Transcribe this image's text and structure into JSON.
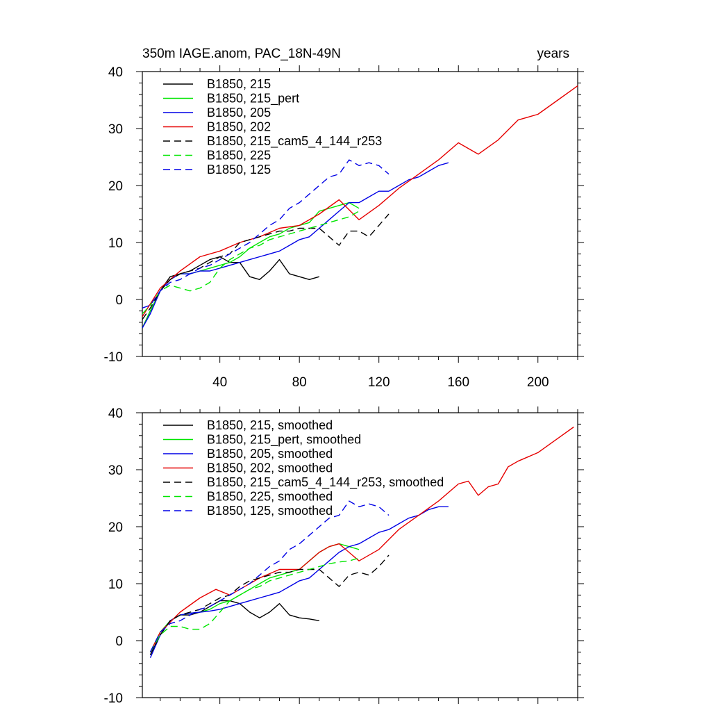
{
  "chart_data": [
    {
      "type": "line",
      "title": "350m IAGE.anom, PAC_18N-49N",
      "title_right": "years",
      "xlim": [
        1,
        220
      ],
      "ylim": [
        -10,
        40
      ],
      "xticks": [
        40,
        80,
        120,
        160,
        200
      ],
      "yticks": [
        -10,
        0,
        10,
        20,
        30,
        40
      ],
      "legend_position": "top-left",
      "series": [
        {
          "name": "B1850, 215",
          "color": "#000000",
          "dash": false,
          "x": [
            1,
            5,
            10,
            15,
            20,
            25,
            30,
            35,
            40,
            45,
            50,
            55,
            60,
            65,
            70,
            75,
            80,
            85,
            90
          ],
          "y": [
            -5,
            -2,
            1.5,
            4,
            4.5,
            5,
            6,
            7,
            7.5,
            6.5,
            6.5,
            4,
            3.5,
            5,
            7,
            4.5,
            4,
            3.5,
            4
          ]
        },
        {
          "name": "B1850, 215_pert",
          "color": "#00e600",
          "dash": false,
          "x": [
            1,
            5,
            10,
            15,
            20,
            25,
            30,
            35,
            40,
            45,
            50,
            55,
            60,
            65,
            70,
            75,
            80,
            85,
            90,
            95,
            100,
            105,
            110
          ],
          "y": [
            -5,
            -2,
            1.5,
            3.5,
            4.5,
            4.5,
            5,
            5.5,
            6,
            6.5,
            7.5,
            9,
            10,
            11,
            11.5,
            12.5,
            13,
            13.5,
            15.5,
            16,
            16.5,
            17,
            16
          ]
        },
        {
          "name": "B1850, 205",
          "color": "#0000e6",
          "dash": false,
          "x": [
            1,
            5,
            10,
            15,
            20,
            25,
            30,
            35,
            40,
            45,
            50,
            55,
            60,
            65,
            70,
            75,
            80,
            85,
            90,
            95,
            100,
            105,
            110,
            115,
            120,
            125,
            130,
            135,
            140,
            145,
            150,
            155
          ],
          "y": [
            -5,
            -2.5,
            1.5,
            3.5,
            4.5,
            4.5,
            5,
            5,
            5.5,
            6,
            6.5,
            7,
            7.5,
            8,
            8.5,
            9.5,
            10.5,
            11,
            12.5,
            14,
            15.5,
            17,
            17,
            18,
            19,
            19,
            20,
            21,
            21.5,
            22.5,
            23.5,
            24
          ]
        },
        {
          "name": "B1850, 202",
          "color": "#e60000",
          "dash": false,
          "x": [
            1,
            10,
            20,
            30,
            40,
            50,
            60,
            70,
            80,
            90,
            100,
            110,
            120,
            130,
            140,
            150,
            160,
            170,
            180,
            190,
            200,
            210,
            220
          ],
          "y": [
            -3,
            2,
            5,
            7.5,
            8.5,
            10,
            11,
            12.5,
            13,
            15,
            17.5,
            14,
            16.5,
            19.5,
            22,
            24.5,
            27.5,
            25.5,
            28,
            31.5,
            32.5,
            35,
            37.5
          ]
        },
        {
          "name": "B1850, 215_cam5_4_144_r253",
          "color": "#000000",
          "dash": true,
          "x": [
            1,
            5,
            10,
            15,
            20,
            25,
            30,
            35,
            40,
            45,
            50,
            55,
            60,
            65,
            70,
            75,
            80,
            85,
            90,
            95,
            100,
            105,
            110,
            115,
            120,
            125
          ],
          "y": [
            -3.5,
            -1.5,
            1.5,
            3.5,
            4.5,
            5,
            5.5,
            6.5,
            7.5,
            8,
            10,
            10.5,
            11,
            11.5,
            12,
            12,
            12.5,
            12.5,
            12.5,
            11,
            9.5,
            12,
            12,
            11,
            13,
            15
          ]
        },
        {
          "name": "B1850, 225",
          "color": "#00e600",
          "dash": true,
          "x": [
            1,
            5,
            10,
            15,
            20,
            25,
            30,
            35,
            40,
            45,
            50,
            55,
            60,
            65,
            70,
            75,
            80,
            85,
            90,
            95,
            100,
            105,
            110
          ],
          "y": [
            -2.5,
            -1,
            1.5,
            2.5,
            2,
            1.5,
            2,
            3,
            5.5,
            7,
            8,
            9,
            9.5,
            10.5,
            11,
            11.5,
            12,
            12.5,
            13,
            13.5,
            14,
            14.5,
            15.5
          ]
        },
        {
          "name": "B1850, 125",
          "color": "#0000e6",
          "dash": true,
          "x": [
            1,
            5,
            10,
            15,
            20,
            25,
            30,
            35,
            40,
            45,
            50,
            55,
            60,
            65,
            70,
            75,
            80,
            85,
            90,
            95,
            100,
            105,
            110,
            115,
            120,
            125
          ],
          "y": [
            -1.5,
            -1,
            1.5,
            3,
            3.5,
            4.5,
            5.5,
            6,
            7,
            8,
            9,
            10,
            11.5,
            13,
            14,
            16,
            17,
            18.5,
            20,
            21.5,
            22,
            24.5,
            23.5,
            24,
            23.5,
            22
          ]
        }
      ]
    },
    {
      "type": "line",
      "xlim": [
        1,
        220
      ],
      "ylim": [
        -10,
        40
      ],
      "yticks": [
        -10,
        0,
        10,
        20,
        30,
        40
      ],
      "legend_position": "top-left",
      "series": [
        {
          "name": "B1850, 215, smoothed",
          "color": "#000000",
          "dash": false,
          "x": [
            5,
            10,
            15,
            20,
            25,
            30,
            35,
            40,
            45,
            50,
            55,
            60,
            65,
            70,
            75,
            80,
            85,
            90
          ],
          "y": [
            -2.5,
            1,
            3.5,
            4.5,
            4.5,
            5,
            6,
            7,
            7,
            6.5,
            5,
            4,
            5,
            6.5,
            4.5,
            4,
            3.8,
            3.5
          ]
        },
        {
          "name": "B1850, 215_pert, smoothed",
          "color": "#00e600",
          "dash": false,
          "x": [
            5,
            10,
            15,
            20,
            25,
            30,
            35,
            40,
            45,
            50,
            55,
            60,
            65,
            70,
            75,
            80,
            85,
            90,
            95,
            100,
            105,
            110
          ],
          "y": [
            -2,
            1.5,
            3.5,
            4.5,
            4.8,
            5,
            5.5,
            6.5,
            7,
            8,
            9,
            10,
            11,
            11.5,
            12,
            12.5,
            14,
            15.5,
            16.5,
            17,
            16.5,
            16
          ]
        },
        {
          "name": "B1850, 205, smoothed",
          "color": "#0000e6",
          "dash": false,
          "x": [
            5,
            10,
            15,
            20,
            25,
            30,
            35,
            40,
            45,
            50,
            55,
            60,
            65,
            70,
            75,
            80,
            85,
            90,
            95,
            100,
            105,
            110,
            115,
            120,
            125,
            130,
            135,
            140,
            145,
            150,
            155
          ],
          "y": [
            -3,
            1,
            3.5,
            4.5,
            4.8,
            5,
            5.2,
            5.5,
            6,
            6.5,
            7,
            7.5,
            8,
            8.5,
            9.5,
            10.5,
            11,
            12.5,
            14,
            15.5,
            16.5,
            17,
            18,
            19,
            19.5,
            20.5,
            21.5,
            22,
            23,
            23.5,
            23.5
          ]
        },
        {
          "name": "B1850, 202, smoothed",
          "color": "#e60000",
          "dash": false,
          "x": [
            5,
            10,
            20,
            30,
            38,
            45,
            50,
            60,
            70,
            80,
            90,
            95,
            100,
            110,
            120,
            130,
            140,
            150,
            160,
            165,
            170,
            175,
            180,
            185,
            190,
            200,
            210,
            218
          ],
          "y": [
            -2,
            1.5,
            5,
            7.5,
            9,
            8,
            9,
            11,
            12.5,
            12.5,
            15.5,
            16.5,
            17,
            14,
            16,
            19.5,
            22,
            24.5,
            27.5,
            28,
            25.5,
            27,
            27.5,
            30.5,
            31.5,
            33,
            35.5,
            37.5
          ]
        },
        {
          "name": "B1850, 215_cam5_4_144_r253, smoothed",
          "color": "#000000",
          "dash": true,
          "x": [
            5,
            10,
            15,
            20,
            25,
            30,
            35,
            40,
            45,
            50,
            55,
            60,
            65,
            70,
            75,
            80,
            85,
            90,
            95,
            100,
            105,
            110,
            115,
            120,
            125
          ],
          "y": [
            -2.5,
            1,
            3.5,
            4.5,
            5,
            5.5,
            6.5,
            7.5,
            8,
            9.5,
            10.5,
            11,
            11.5,
            12,
            12,
            12.5,
            12.5,
            12.5,
            11,
            9.5,
            11.5,
            12,
            11.5,
            13,
            15
          ]
        },
        {
          "name": "B1850, 225, smoothed",
          "color": "#00e600",
          "dash": true,
          "x": [
            5,
            10,
            15,
            20,
            25,
            30,
            35,
            40,
            45,
            50,
            55,
            60,
            65,
            70,
            75,
            80,
            85,
            90,
            95,
            100,
            105,
            110
          ],
          "y": [
            -2,
            1,
            2.5,
            2.5,
            2,
            2,
            3,
            5,
            7,
            8,
            9,
            9.5,
            10.5,
            11,
            11.5,
            12,
            12.5,
            13,
            13.5,
            13.8,
            14,
            14.5
          ]
        },
        {
          "name": "B1850, 125, smoothed",
          "color": "#0000e6",
          "dash": true,
          "x": [
            5,
            10,
            15,
            20,
            25,
            30,
            35,
            40,
            45,
            50,
            55,
            60,
            65,
            70,
            75,
            80,
            85,
            90,
            95,
            100,
            105,
            110,
            115,
            120,
            125
          ],
          "y": [
            -2,
            1.5,
            3,
            3.5,
            4.5,
            5.5,
            6,
            7,
            8,
            9,
            10,
            11.5,
            13,
            14,
            16,
            17,
            18.5,
            20,
            21.5,
            22,
            24.5,
            23.5,
            24,
            23.5,
            22
          ]
        }
      ]
    }
  ]
}
